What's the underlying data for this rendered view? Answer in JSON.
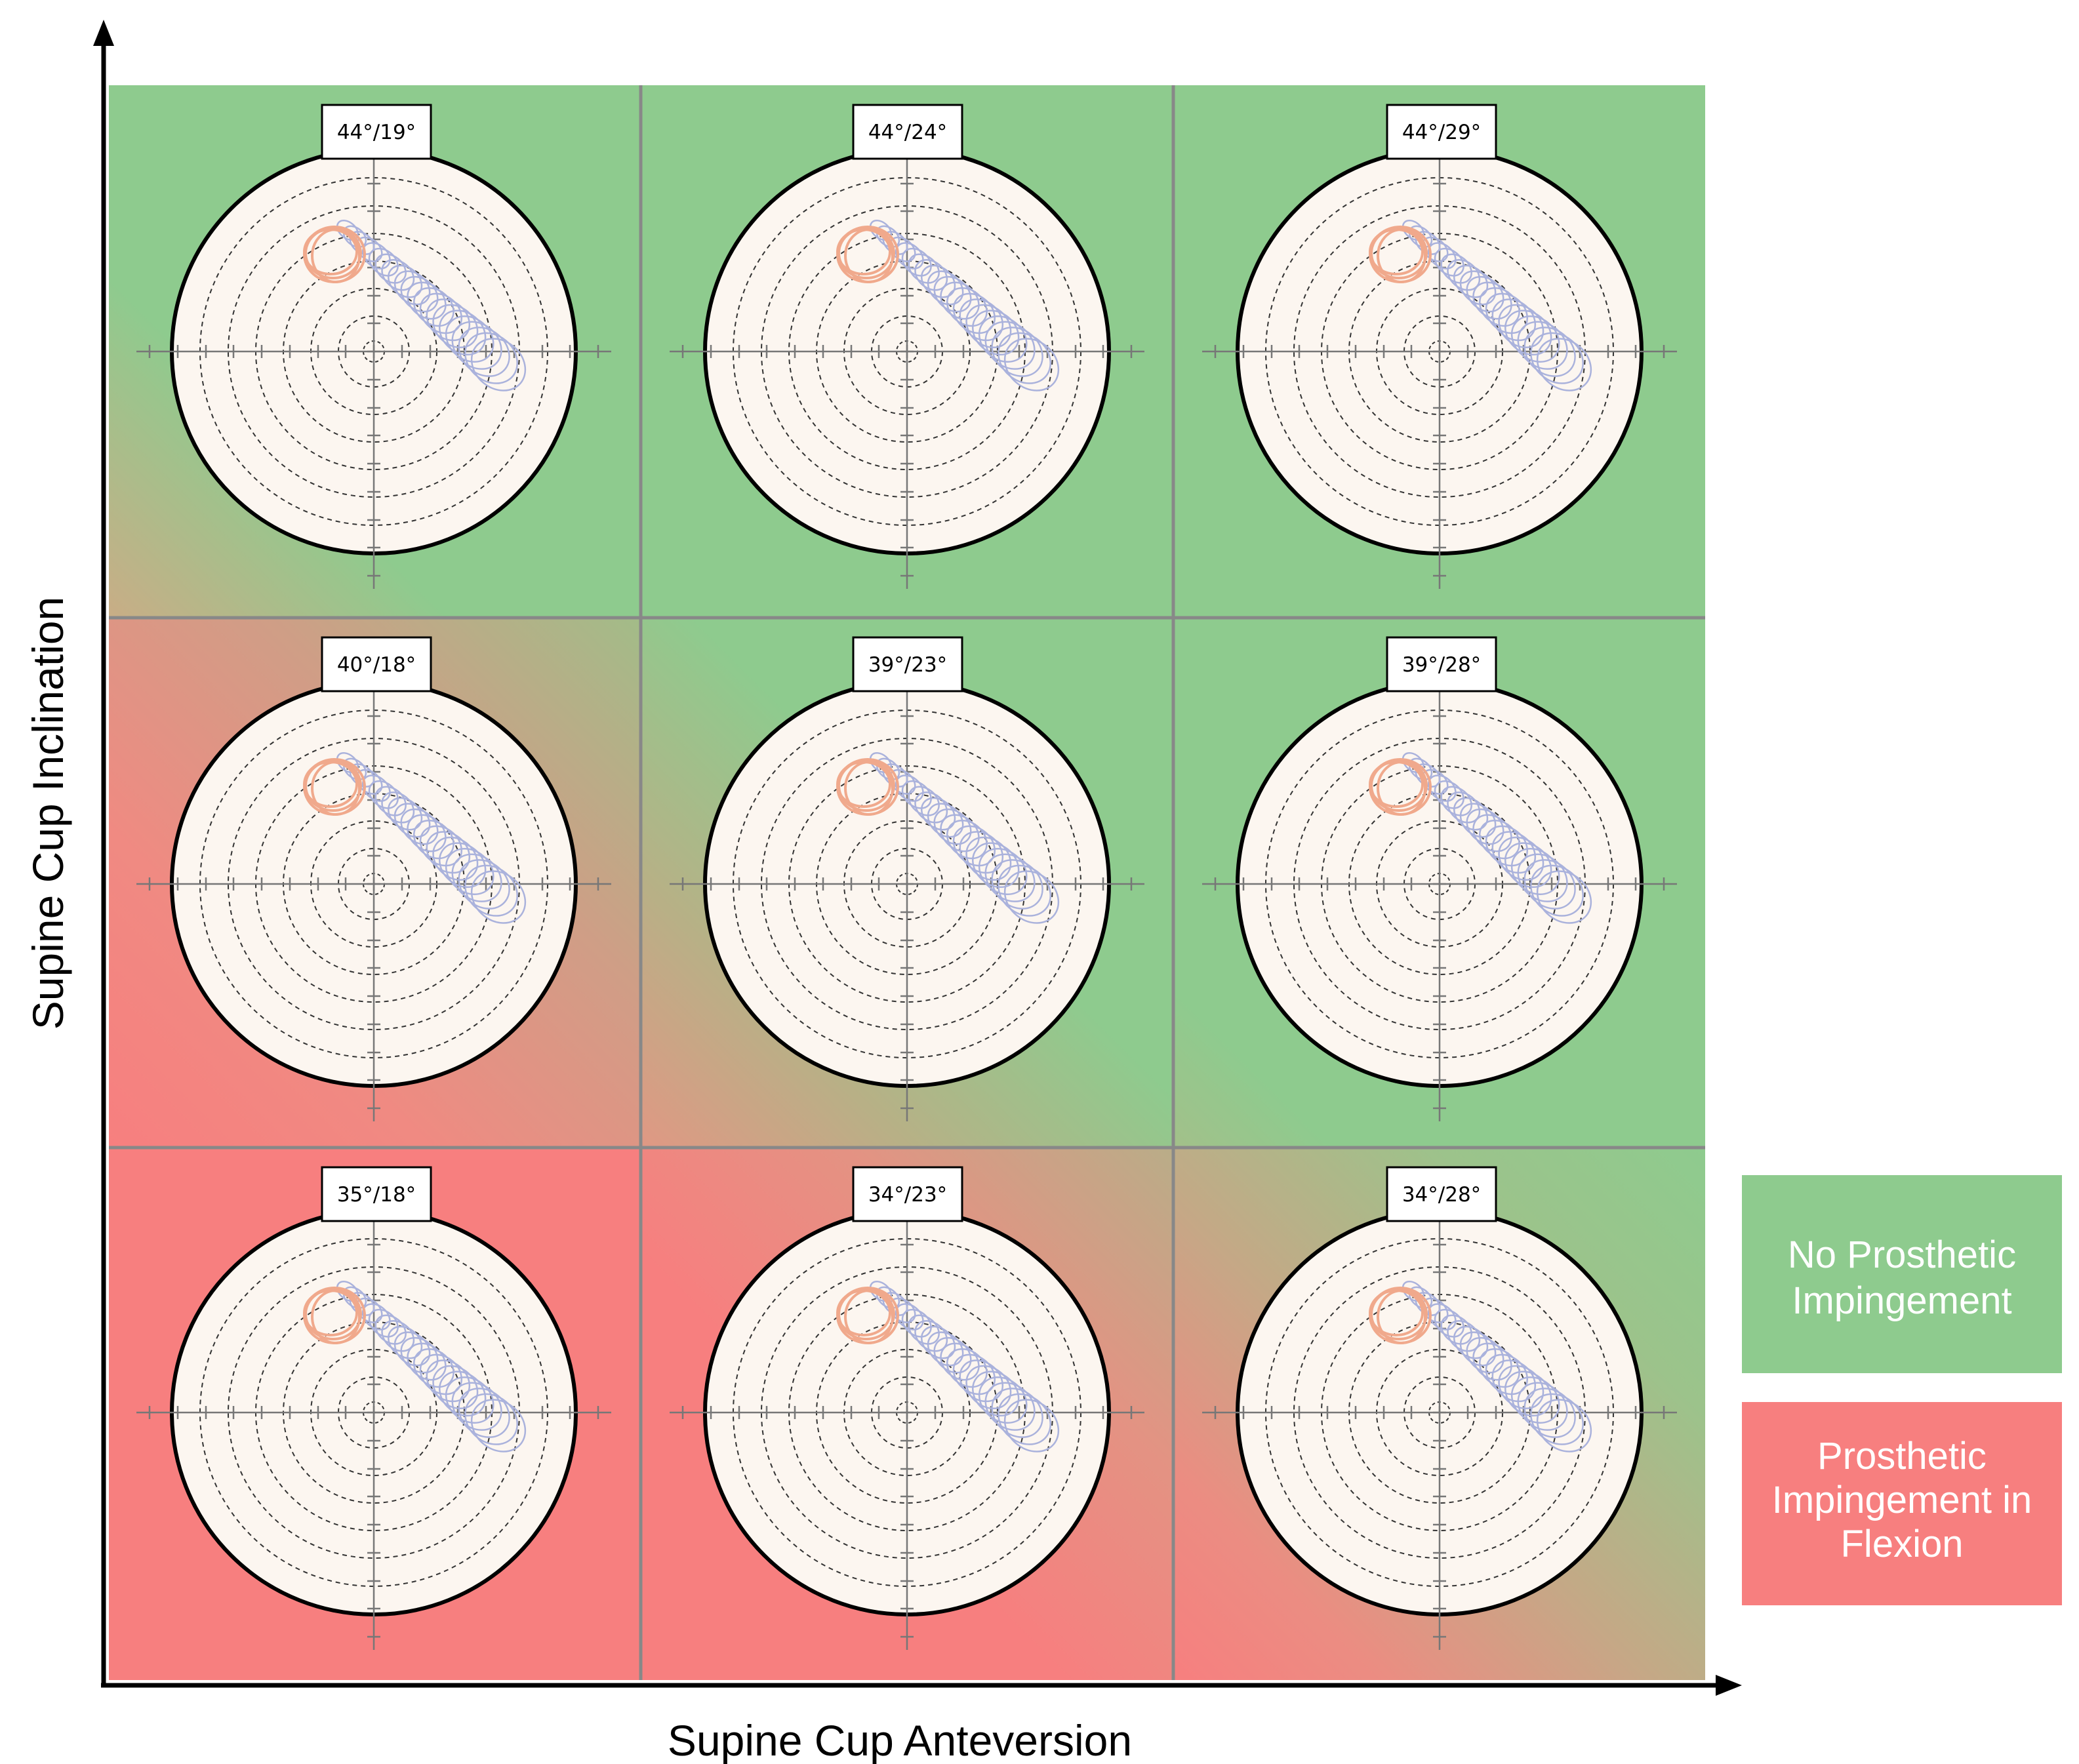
{
  "axes": {
    "x_title": "Supine Cup Anteversion",
    "y_title": "Supine Cup Inclination"
  },
  "legend": {
    "no_impingement": {
      "line1": "No Prosthetic",
      "line2": "Impingement",
      "color": "#8ecb8e"
    },
    "impingement": {
      "line1": "Prosthetic",
      "line2": "Impingement in",
      "line3": "Flexion",
      "color": "#f77f7f"
    }
  },
  "colors": {
    "green": "#8ecb8e",
    "red": "#f77f7f",
    "plot_face": "#fcf6f0",
    "orange_trace": "#f0a98c",
    "blue_trace": "#aab2dc",
    "grid_line": "#888888"
  },
  "grid": {
    "rows": [
      {
        "inclination_level": "high",
        "cells": [
          {
            "label": "44°/19°",
            "impingement": "none"
          },
          {
            "label": "44°/24°",
            "impingement": "none"
          },
          {
            "label": "44°/29°",
            "impingement": "none"
          }
        ]
      },
      {
        "inclination_level": "mid",
        "cells": [
          {
            "label": "40°/18°",
            "impingement": "partial"
          },
          {
            "label": "39°/23°",
            "impingement": "partial"
          },
          {
            "label": "39°/28°",
            "impingement": "none"
          }
        ]
      },
      {
        "inclination_level": "low",
        "cells": [
          {
            "label": "35°/18°",
            "impingement": "full"
          },
          {
            "label": "34°/23°",
            "impingement": "partial"
          },
          {
            "label": "34°/28°",
            "impingement": "partial"
          }
        ]
      }
    ]
  }
}
